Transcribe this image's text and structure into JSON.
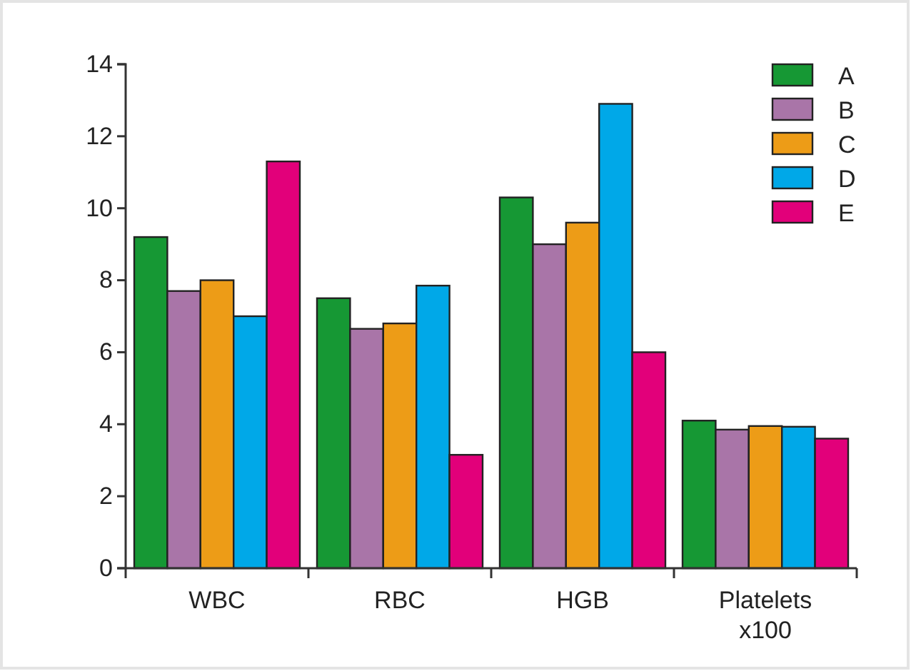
{
  "chart_data": {
    "type": "bar",
    "categories": [
      "WBC",
      "RBC",
      "HGB",
      "Platelets x100"
    ],
    "series": [
      {
        "name": "A",
        "color": "#169834",
        "values": [
          9.2,
          7.5,
          10.3,
          4.1
        ]
      },
      {
        "name": "B",
        "color": "#a975a8",
        "values": [
          7.7,
          6.65,
          9.0,
          3.85
        ]
      },
      {
        "name": "C",
        "color": "#ed9c17",
        "values": [
          8.0,
          6.8,
          9.6,
          3.95
        ]
      },
      {
        "name": "D",
        "color": "#00a8e8",
        "values": [
          7.0,
          7.85,
          12.9,
          3.93
        ]
      },
      {
        "name": "E",
        "color": "#e2007a",
        "values": [
          11.3,
          3.15,
          6.0,
          3.6
        ]
      }
    ],
    "ylim": [
      0,
      14
    ],
    "yticks": [
      0,
      2,
      4,
      6,
      8,
      10,
      12,
      14
    ],
    "grid": false,
    "legend": "top right"
  }
}
